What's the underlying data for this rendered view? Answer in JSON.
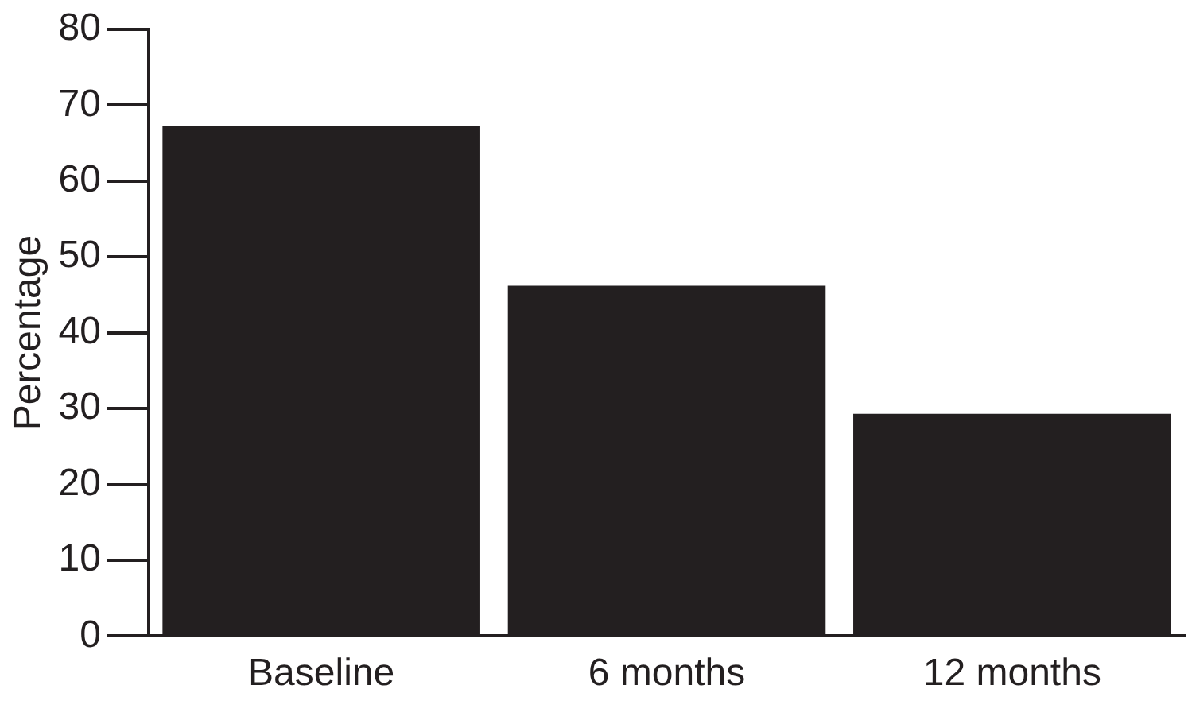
{
  "chart_data": {
    "type": "bar",
    "ylabel": "Percentage",
    "categories": [
      "Baseline",
      "6 months",
      "12 months"
    ],
    "values": [
      67.2,
      46.2,
      29.3
    ],
    "color": "#231f20",
    "ylim": [
      0,
      80
    ],
    "yticks": [
      0,
      10,
      20,
      30,
      40,
      50,
      60,
      70,
      80
    ],
    "grid": false,
    "legend": false
  }
}
